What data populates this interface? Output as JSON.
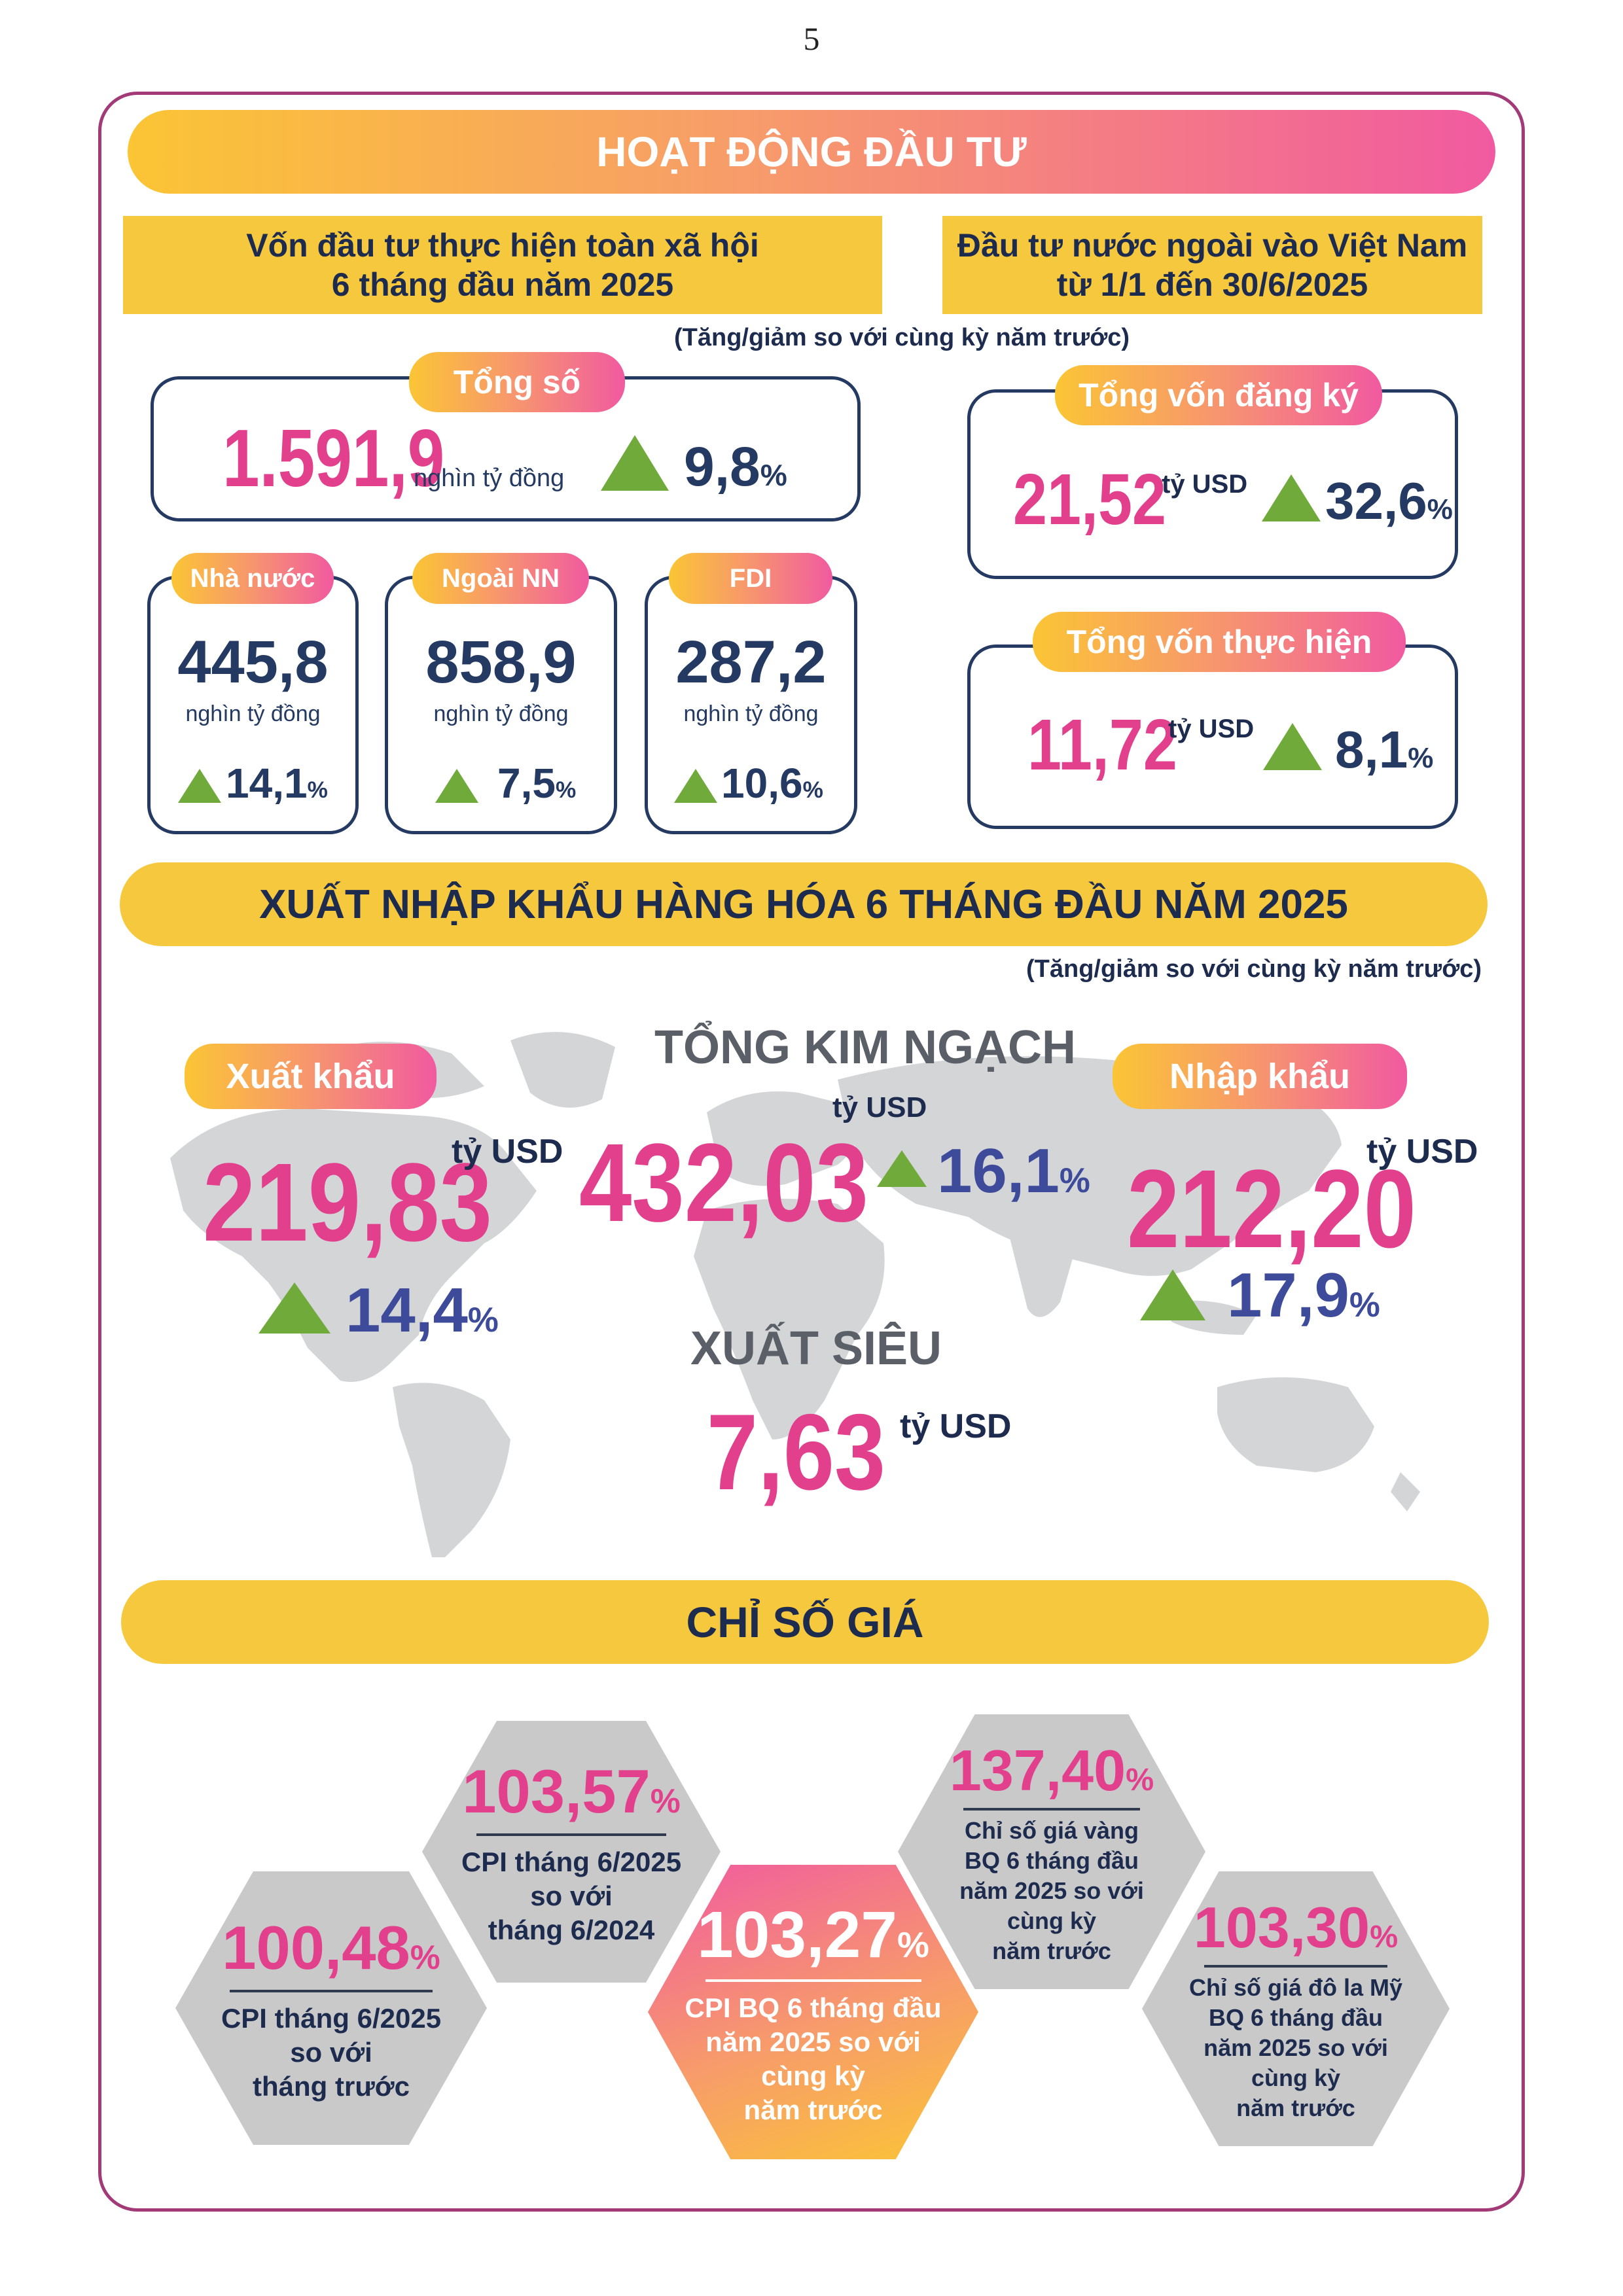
{
  "page_number": "5",
  "investment": {
    "banner": "HOẠT ĐỘNG ĐẦU TƯ",
    "left_heading_line1": "Vốn đầu tư thực hiện toàn xã hội",
    "left_heading_line2": "6 tháng đầu năm 2025",
    "right_heading_line1": "Đầu tư nước ngoài vào Việt Nam",
    "right_heading_line2": "từ 1/1 đến 30/6/2025",
    "note": "(Tăng/giảm so với cùng kỳ năm trước)",
    "total": {
      "label": "Tổng số",
      "value": "1.591,9",
      "unit": "nghìn tỷ đồng",
      "change": "9,8",
      "pct": "%"
    },
    "components": [
      {
        "label": "Nhà nước",
        "value": "445,8",
        "unit": "nghìn tỷ đồng",
        "change": "14,1",
        "pct": "%"
      },
      {
        "label": "Ngoài NN",
        "value": "858,9",
        "unit": "nghìn tỷ đồng",
        "change": "7,5",
        "pct": "%"
      },
      {
        "label": "FDI",
        "value": "287,2",
        "unit": "nghìn tỷ đồng",
        "change": "10,6",
        "pct": "%"
      }
    ],
    "fdi_registered": {
      "label": "Tổng vốn đăng ký",
      "value": "21,52",
      "unit": "tỷ USD",
      "change": "32,6",
      "pct": "%"
    },
    "fdi_implemented": {
      "label": "Tổng vốn thực hiện",
      "value": "11,72",
      "unit": "tỷ USD",
      "change": "8,1",
      "pct": "%"
    }
  },
  "trade": {
    "banner": "XUẤT NHẬP KHẨU HÀNG HÓA 6 THÁNG ĐẦU NĂM 2025",
    "note": "(Tăng/giảm so với cùng kỳ năm trước)",
    "export": {
      "label": "Xuất khẩu",
      "value": "219,83",
      "unit": "tỷ USD",
      "change": "14,4",
      "pct": "%"
    },
    "total": {
      "label": "TỔNG KIM NGẠCH",
      "value": "432,03",
      "unit": "tỷ USD",
      "change": "16,1",
      "pct": "%"
    },
    "import": {
      "label": "Nhập khẩu",
      "value": "212,20",
      "unit": "tỷ USD",
      "change": "17,9",
      "pct": "%"
    },
    "surplus": {
      "label": "XUẤT SIÊU",
      "value": "7,63",
      "unit": "tỷ USD"
    },
    "map_icon": "world-map-icon"
  },
  "prices": {
    "banner": "CHỈ SỐ GIÁ",
    "hexagons": [
      {
        "value": "100,48",
        "pct": "%",
        "lines": [
          "CPI tháng 6/2025",
          "so với",
          "tháng trước"
        ]
      },
      {
        "value": "103,57",
        "pct": "%",
        "lines": [
          "CPI tháng 6/2025",
          "so với",
          "tháng 6/2024"
        ]
      },
      {
        "value": "103,27",
        "pct": "%",
        "lines": [
          "CPI BQ 6 tháng đầu",
          "năm 2025 so với",
          "cùng kỳ",
          "năm trước"
        ]
      },
      {
        "value": "137,40",
        "pct": "%",
        "lines": [
          "Chỉ số giá vàng",
          "BQ 6 tháng đầu",
          "năm 2025 so với",
          "cùng kỳ",
          "năm trước"
        ]
      },
      {
        "value": "103,30",
        "pct": "%",
        "lines": [
          "Chỉ số giá đô la Mỹ",
          "BQ 6 tháng đầu",
          "năm 2025 so với",
          "cùng kỳ",
          "năm trước"
        ]
      }
    ]
  },
  "colors": {
    "pink": "#e2408d",
    "navy": "#243a63",
    "yellow": "#f6c83e",
    "green": "#6faa3a",
    "frame": "#a23a78",
    "grey": "#c9c9c9"
  }
}
